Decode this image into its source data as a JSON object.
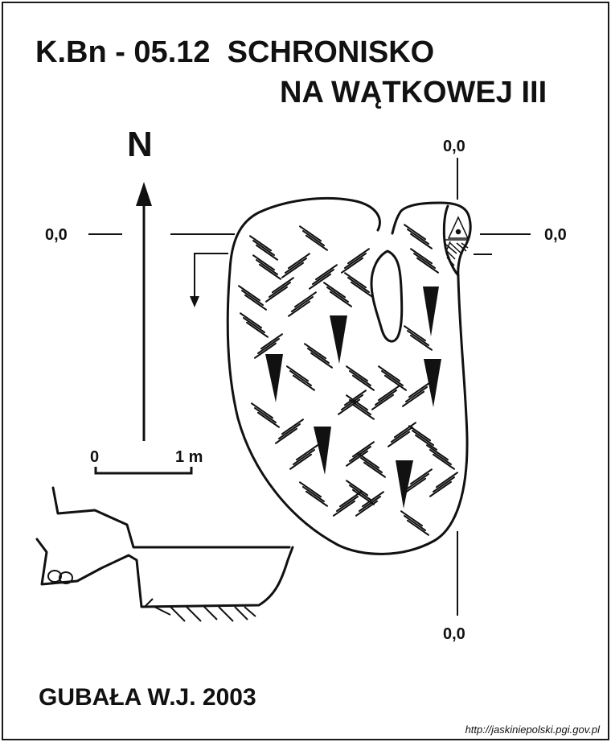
{
  "map": {
    "title_line1": "K.Bn - 05.12  SCHRONISKO",
    "title_line2": "NA WĄTKOWEJ III",
    "north_label": "N",
    "scale": {
      "zero": "0",
      "one": "1 m"
    },
    "datum_labels": {
      "top": "0,0",
      "left": "0,0",
      "right": "0,0",
      "bottom": "0,0"
    },
    "author": "GUBAŁA W.J. 2003",
    "source": "http://jaskiniepolski.pgi.gov.pl"
  }
}
